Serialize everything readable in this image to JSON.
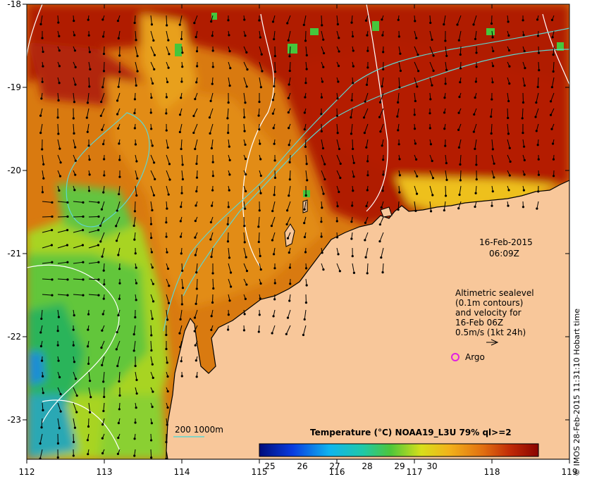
{
  "map": {
    "lon_ticks": [
      "112",
      "113",
      "114",
      "115",
      "116",
      "117",
      "118",
      "119"
    ],
    "lat_ticks": [
      "-18",
      "-19",
      "-20",
      "-21",
      "-22",
      "-23"
    ],
    "date": "16-Feb-2015",
    "time": "06:09Z",
    "legend_lines": [
      "Altimetric sealevel",
      "(0.1m contours)",
      "and velocity for",
      "16-Feb 06Z",
      "0.5m/s (1kt 24h)"
    ],
    "argo_label": "Argo",
    "colorbar_title": "Temperature (°C) NOAA19_L3U 79% ql>=2",
    "colorbar_ticks": [
      "25",
      "26",
      "27",
      "28",
      "29",
      "30"
    ],
    "isobath_label": "200  1000m",
    "credit": "© IMOS 28-Feb-2015 11:31:10 Hobart time",
    "colors": {
      "land": "#f8c79a",
      "hot": "#a80a00",
      "warm": "#d9700a",
      "mid": "#e9a218",
      "yellow": "#d8dd1c",
      "green": "#49c83e",
      "cool": "#10a8e6",
      "contour": "#ffffff",
      "isobath": "#5fd5cf",
      "argo": "#e020e0"
    }
  }
}
